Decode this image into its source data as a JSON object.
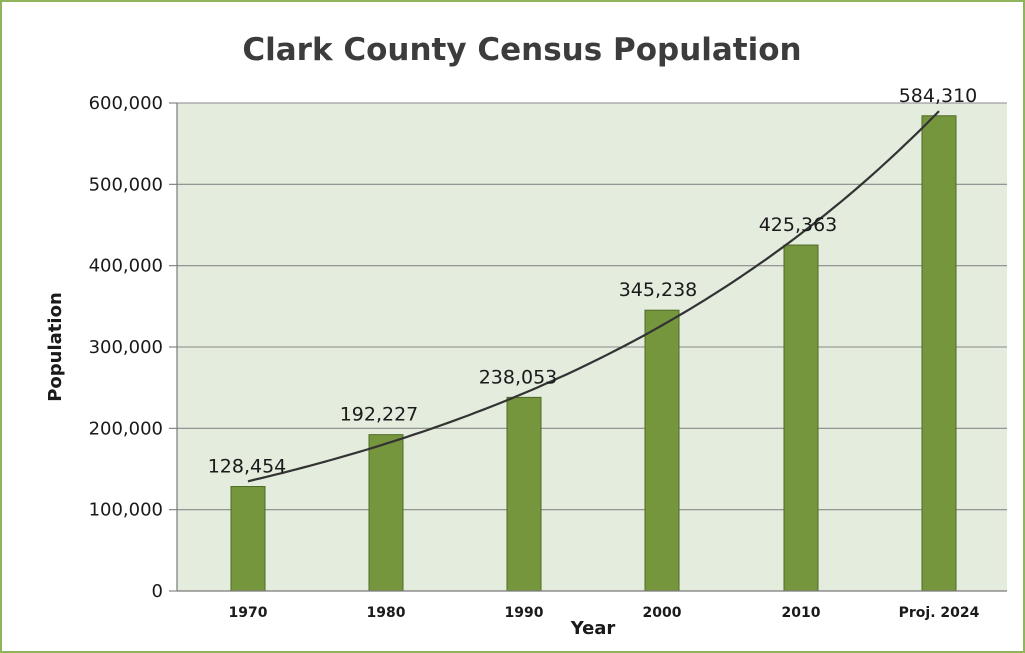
{
  "chart_data": {
    "type": "bar",
    "title": "Clark County Census Population",
    "xlabel": "Year",
    "ylabel": "Population",
    "categories": [
      "1970",
      "1980",
      "1990",
      "2000",
      "2010",
      "Proj. 2024"
    ],
    "values": [
      128454,
      192227,
      238053,
      345238,
      425363,
      584310
    ],
    "data_labels": [
      "128,454",
      "192,227",
      "238,053",
      "345,238",
      "425,363",
      "584,310"
    ],
    "ylim": [
      0,
      600000
    ],
    "yticks": [
      0,
      100000,
      200000,
      300000,
      400000,
      500000,
      600000
    ],
    "ytick_labels": [
      "0",
      "100,000",
      "200,000",
      "300,000",
      "400,000",
      "500,000",
      "600,000"
    ],
    "grid": true,
    "trendline": "exponential",
    "colors": {
      "bar_fill": "#76963e",
      "bar_stroke": "#4e6a26",
      "plot_background": "#e3ecdd",
      "frame_border": "#8fb45a",
      "gridline": "#8a8a8a",
      "trendline": "#333333"
    }
  }
}
